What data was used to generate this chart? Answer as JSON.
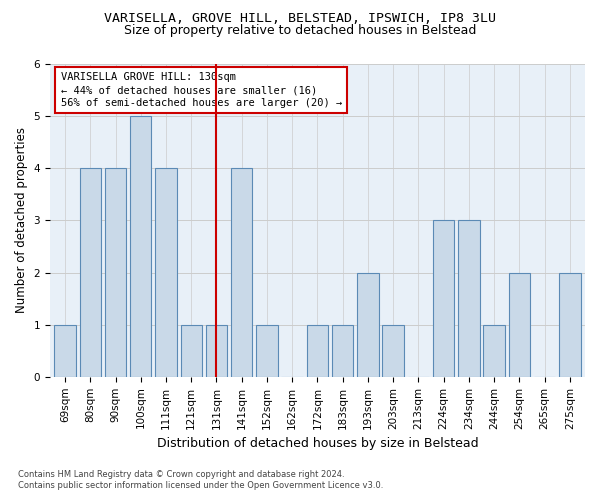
{
  "title1": "VARISELLA, GROVE HILL, BELSTEAD, IPSWICH, IP8 3LU",
  "title2": "Size of property relative to detached houses in Belstead",
  "xlabel": "Distribution of detached houses by size in Belstead",
  "ylabel": "Number of detached properties",
  "categories": [
    "69sqm",
    "80sqm",
    "90sqm",
    "100sqm",
    "111sqm",
    "121sqm",
    "131sqm",
    "141sqm",
    "152sqm",
    "162sqm",
    "172sqm",
    "183sqm",
    "193sqm",
    "203sqm",
    "213sqm",
    "224sqm",
    "234sqm",
    "244sqm",
    "254sqm",
    "265sqm",
    "275sqm"
  ],
  "values": [
    1,
    4,
    4,
    5,
    4,
    1,
    1,
    4,
    1,
    0,
    1,
    1,
    2,
    1,
    0,
    3,
    3,
    1,
    2,
    0,
    2
  ],
  "highlight_index": 6,
  "bar_color": "#c9d9e8",
  "bar_edge_color": "#5b8ab5",
  "highlight_line_color": "#cc0000",
  "annotation_line1": "VARISELLA GROVE HILL: 130sqm",
  "annotation_line2": "← 44% of detached houses are smaller (16)",
  "annotation_line3": "56% of semi-detached houses are larger (20) →",
  "annotation_box_color": "#ffffff",
  "annotation_box_edge": "#cc0000",
  "ylim": [
    0,
    6
  ],
  "yticks": [
    0,
    1,
    2,
    3,
    4,
    5,
    6
  ],
  "footer1": "Contains HM Land Registry data © Crown copyright and database right 2024.",
  "footer2": "Contains public sector information licensed under the Open Government Licence v3.0.",
  "bg_color": "#ffffff",
  "plot_bg_color": "#e8f0f8",
  "grid_color": "#cccccc",
  "title1_fontsize": 9.5,
  "title2_fontsize": 9.0,
  "xlabel_fontsize": 9.0,
  "ylabel_fontsize": 8.5,
  "tick_fontsize": 7.5,
  "annot_fontsize": 7.5,
  "footer_fontsize": 6.0
}
